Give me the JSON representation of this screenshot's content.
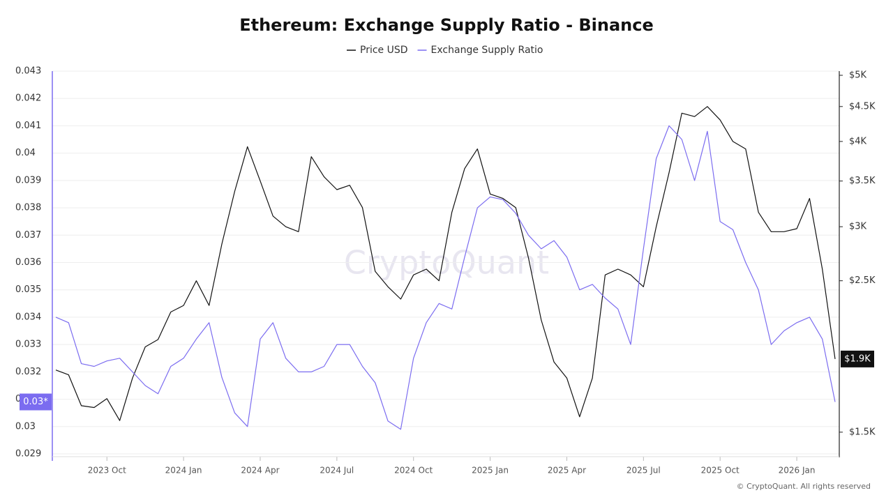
{
  "chart_data": {
    "type": "line",
    "title": "Ethereum: Exchange Supply Ratio - Binance",
    "watermark": "CryptoQuant",
    "credit": "© CryptoQuant. All rights reserved",
    "legend": "top",
    "grid": true,
    "categories": [
      null,
      null,
      null,
      null,
      "2023 Oct",
      null,
      null,
      null,
      null,
      null,
      "2024 Jan",
      null,
      null,
      null,
      null,
      null,
      "2024 Apr",
      null,
      null,
      null,
      null,
      null,
      "2024 Jul",
      null,
      null,
      null,
      null,
      null,
      "2024 Oct",
      null,
      null,
      null,
      null,
      null,
      "2025 Jan",
      null,
      null,
      null,
      null,
      null,
      "2025 Apr",
      null,
      null,
      null,
      null,
      null,
      "2025 Jul",
      null,
      null,
      null,
      null,
      null,
      "2025 Oct",
      null,
      null,
      null,
      null,
      null,
      "2026 Jan",
      null,
      null,
      null
    ],
    "ylim": [
      0.029,
      0.043
    ],
    "yticks": [
      0.029,
      0.03,
      0.031,
      0.032,
      0.033,
      0.034,
      0.035,
      0.036,
      0.037,
      0.038,
      0.039,
      0.04,
      0.041,
      0.042,
      0.043
    ],
    "y2lim": [
      1394,
      5071
    ],
    "y2scale": "log",
    "y2ticks": [
      {
        "value": 1500,
        "label": "$1.5K"
      },
      {
        "value": 2500,
        "label": "$2.5K"
      },
      {
        "value": 3000,
        "label": "$3K"
      },
      {
        "value": 3500,
        "label": "$3.5K"
      },
      {
        "value": 4000,
        "label": "$4K"
      },
      {
        "value": 4500,
        "label": "$4.5K"
      },
      {
        "value": 5000,
        "label": "$5K"
      }
    ],
    "series": [
      {
        "name": "Price USD",
        "color": "#111111",
        "axis": "y2",
        "values": [
          1850,
          1820,
          1640,
          1630,
          1680,
          1560,
          1800,
          2000,
          2050,
          2250,
          2300,
          2500,
          2300,
          2830,
          3380,
          3930,
          3500,
          3110,
          3000,
          2950,
          3800,
          3550,
          3400,
          3450,
          3200,
          2580,
          2450,
          2350,
          2550,
          2600,
          2500,
          3150,
          3650,
          3900,
          3350,
          3300,
          3200,
          2700,
          2190,
          1900,
          1800,
          1580,
          1800,
          2550,
          2600,
          2550,
          2450,
          3000,
          3600,
          4400,
          4350,
          4500,
          4300,
          4000,
          3900,
          3150,
          2950,
          2950,
          2980,
          3300,
          2600,
          1920
        ],
        "value_labels": [
          null,
          null,
          null,
          null,
          null,
          null,
          null,
          null,
          null,
          null,
          null,
          null,
          null,
          null,
          null,
          null,
          null,
          null,
          null,
          null,
          null,
          null,
          null,
          null,
          null,
          null,
          null,
          null,
          null,
          null,
          null,
          null,
          null,
          null,
          null,
          null,
          null,
          null,
          null,
          null,
          null,
          null,
          null,
          null,
          null,
          null,
          null,
          null,
          null,
          null,
          null,
          null,
          null,
          null,
          null,
          null,
          null,
          null,
          null,
          null,
          null,
          "$1.9K"
        ]
      },
      {
        "name": "Exchange Supply Ratio",
        "color": "#7b6cf0",
        "axis": "y",
        "values": [
          0.034,
          0.0338,
          0.0323,
          0.0322,
          0.0324,
          0.0325,
          0.032,
          0.0315,
          0.0312,
          0.0322,
          0.0325,
          0.0332,
          0.0338,
          0.0318,
          0.0305,
          0.03,
          0.0332,
          0.0338,
          0.0325,
          0.032,
          0.032,
          0.0322,
          0.033,
          0.033,
          0.0322,
          0.0316,
          0.0302,
          0.0299,
          0.0325,
          0.0338,
          0.0345,
          0.0343,
          0.0362,
          0.038,
          0.0384,
          0.0383,
          0.0378,
          0.037,
          0.0365,
          0.0368,
          0.0362,
          0.035,
          0.0352,
          0.0347,
          0.0343,
          0.033,
          0.0365,
          0.0398,
          0.041,
          0.0405,
          0.039,
          0.0408,
          0.0375,
          0.0372,
          0.036,
          0.035,
          0.033,
          0.0335,
          0.0338,
          0.034,
          0.0332,
          0.0309
        ],
        "value_labels": [
          null,
          null,
          null,
          null,
          null,
          null,
          null,
          null,
          null,
          null,
          null,
          null,
          null,
          null,
          null,
          null,
          null,
          null,
          null,
          null,
          null,
          null,
          null,
          null,
          null,
          null,
          null,
          null,
          null,
          null,
          null,
          null,
          null,
          null,
          null,
          null,
          null,
          null,
          null,
          null,
          null,
          null,
          null,
          null,
          null,
          null,
          null,
          null,
          null,
          null,
          null,
          null,
          null,
          null,
          null,
          null,
          null,
          null,
          null,
          null,
          null,
          "0.03*"
        ]
      }
    ]
  }
}
